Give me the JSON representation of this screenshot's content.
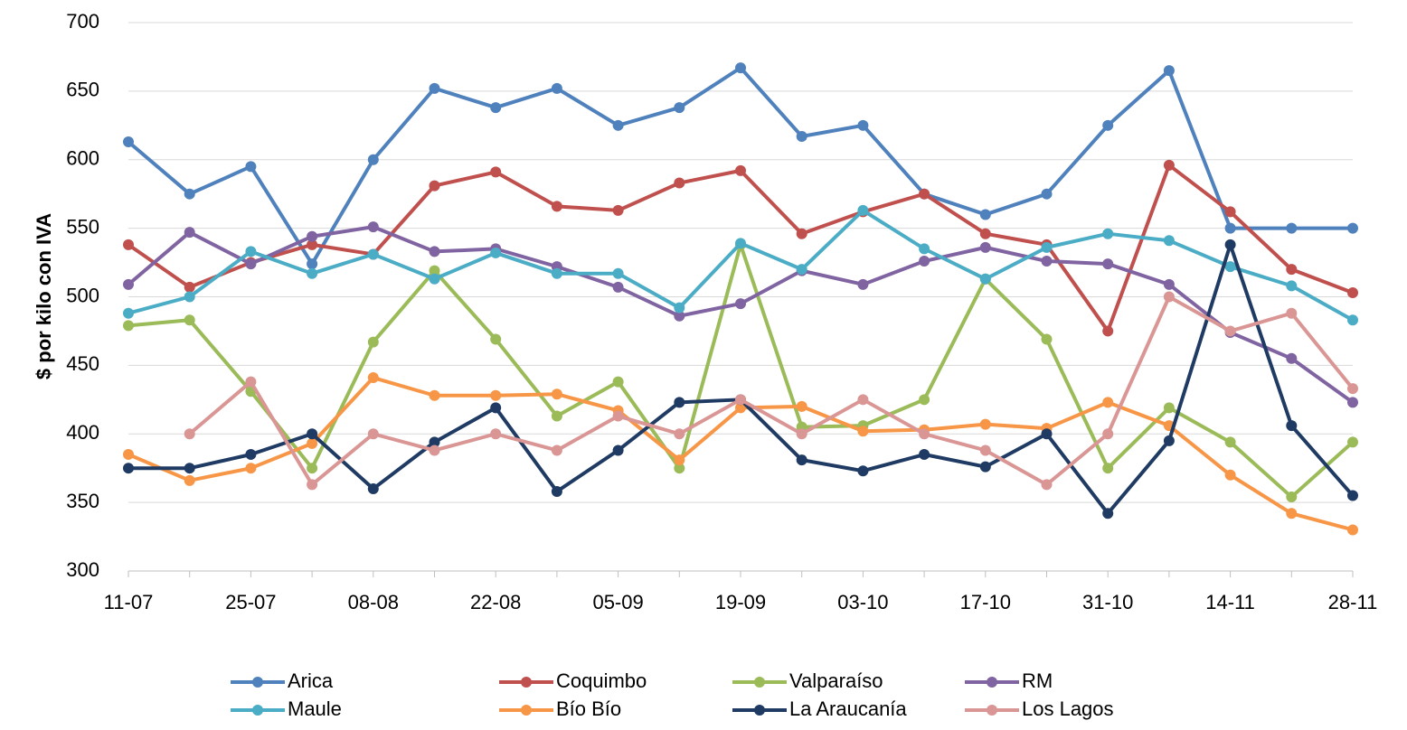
{
  "chart_data": {
    "type": "line",
    "y_label": "$ por kilo con IVA",
    "categories": [
      "11-07",
      null,
      "25-07",
      null,
      "08-08",
      null,
      "22-08",
      null,
      "05-09",
      null,
      "19-09",
      null,
      "03-10",
      null,
      "17-10",
      null,
      "31-10",
      null,
      "14-11",
      null,
      "28-11"
    ],
    "series": [
      {
        "name": "Arica",
        "color": "#4f81bd",
        "values": [
          613,
          575,
          595,
          524,
          600,
          652,
          638,
          652,
          625,
          638,
          667,
          617,
          625,
          575,
          560,
          575,
          625,
          665,
          550,
          550,
          550
        ]
      },
      {
        "name": "Coquimbo",
        "color": "#c0504d",
        "values": [
          538,
          507,
          525,
          538,
          531,
          581,
          591,
          566,
          563,
          583,
          592,
          546,
          562,
          575,
          546,
          538,
          475,
          596,
          562,
          520,
          503
        ]
      },
      {
        "name": "Valparaíso",
        "color": "#9bbb59",
        "values": [
          479,
          483,
          431,
          375,
          467,
          519,
          469,
          413,
          438,
          375,
          538,
          405,
          406,
          425,
          513,
          469,
          375,
          419,
          394,
          354,
          394
        ]
      },
      {
        "name": "RM",
        "color": "#8064a2",
        "values": [
          509,
          547,
          524,
          544,
          551,
          533,
          535,
          522,
          507,
          486,
          495,
          519,
          509,
          526,
          536,
          526,
          524,
          509,
          474,
          455,
          423
        ]
      },
      {
        "name": "Maule",
        "color": "#4bacc6",
        "values": [
          488,
          500,
          533,
          517,
          531,
          513,
          532,
          517,
          517,
          492,
          539,
          520,
          563,
          535,
          513,
          536,
          546,
          541,
          522,
          508,
          483
        ]
      },
      {
        "name": "Bío Bío",
        "color": "#f79646",
        "values": [
          385,
          366,
          375,
          393,
          441,
          428,
          428,
          429,
          417,
          381,
          419,
          420,
          402,
          403,
          407,
          404,
          423,
          406,
          370,
          342,
          330
        ]
      },
      {
        "name": "La Araucanía",
        "color": "#1f3b63",
        "values": [
          375,
          375,
          385,
          400,
          360,
          394,
          419,
          358,
          388,
          423,
          425,
          381,
          373,
          385,
          376,
          400,
          342,
          395,
          538,
          406,
          355
        ]
      },
      {
        "name": "Los Lagos",
        "color": "#d99694",
        "values": [
          null,
          400,
          438,
          363,
          400,
          388,
          400,
          388,
          413,
          400,
          425,
          400,
          425,
          400,
          388,
          363,
          400,
          500,
          475,
          488,
          433
        ]
      }
    ],
    "ylim": [
      300,
      700
    ],
    "yticks": [
      300,
      350,
      400,
      450,
      500,
      550,
      600,
      650,
      700
    ],
    "grid": true,
    "legend": "bottom"
  }
}
